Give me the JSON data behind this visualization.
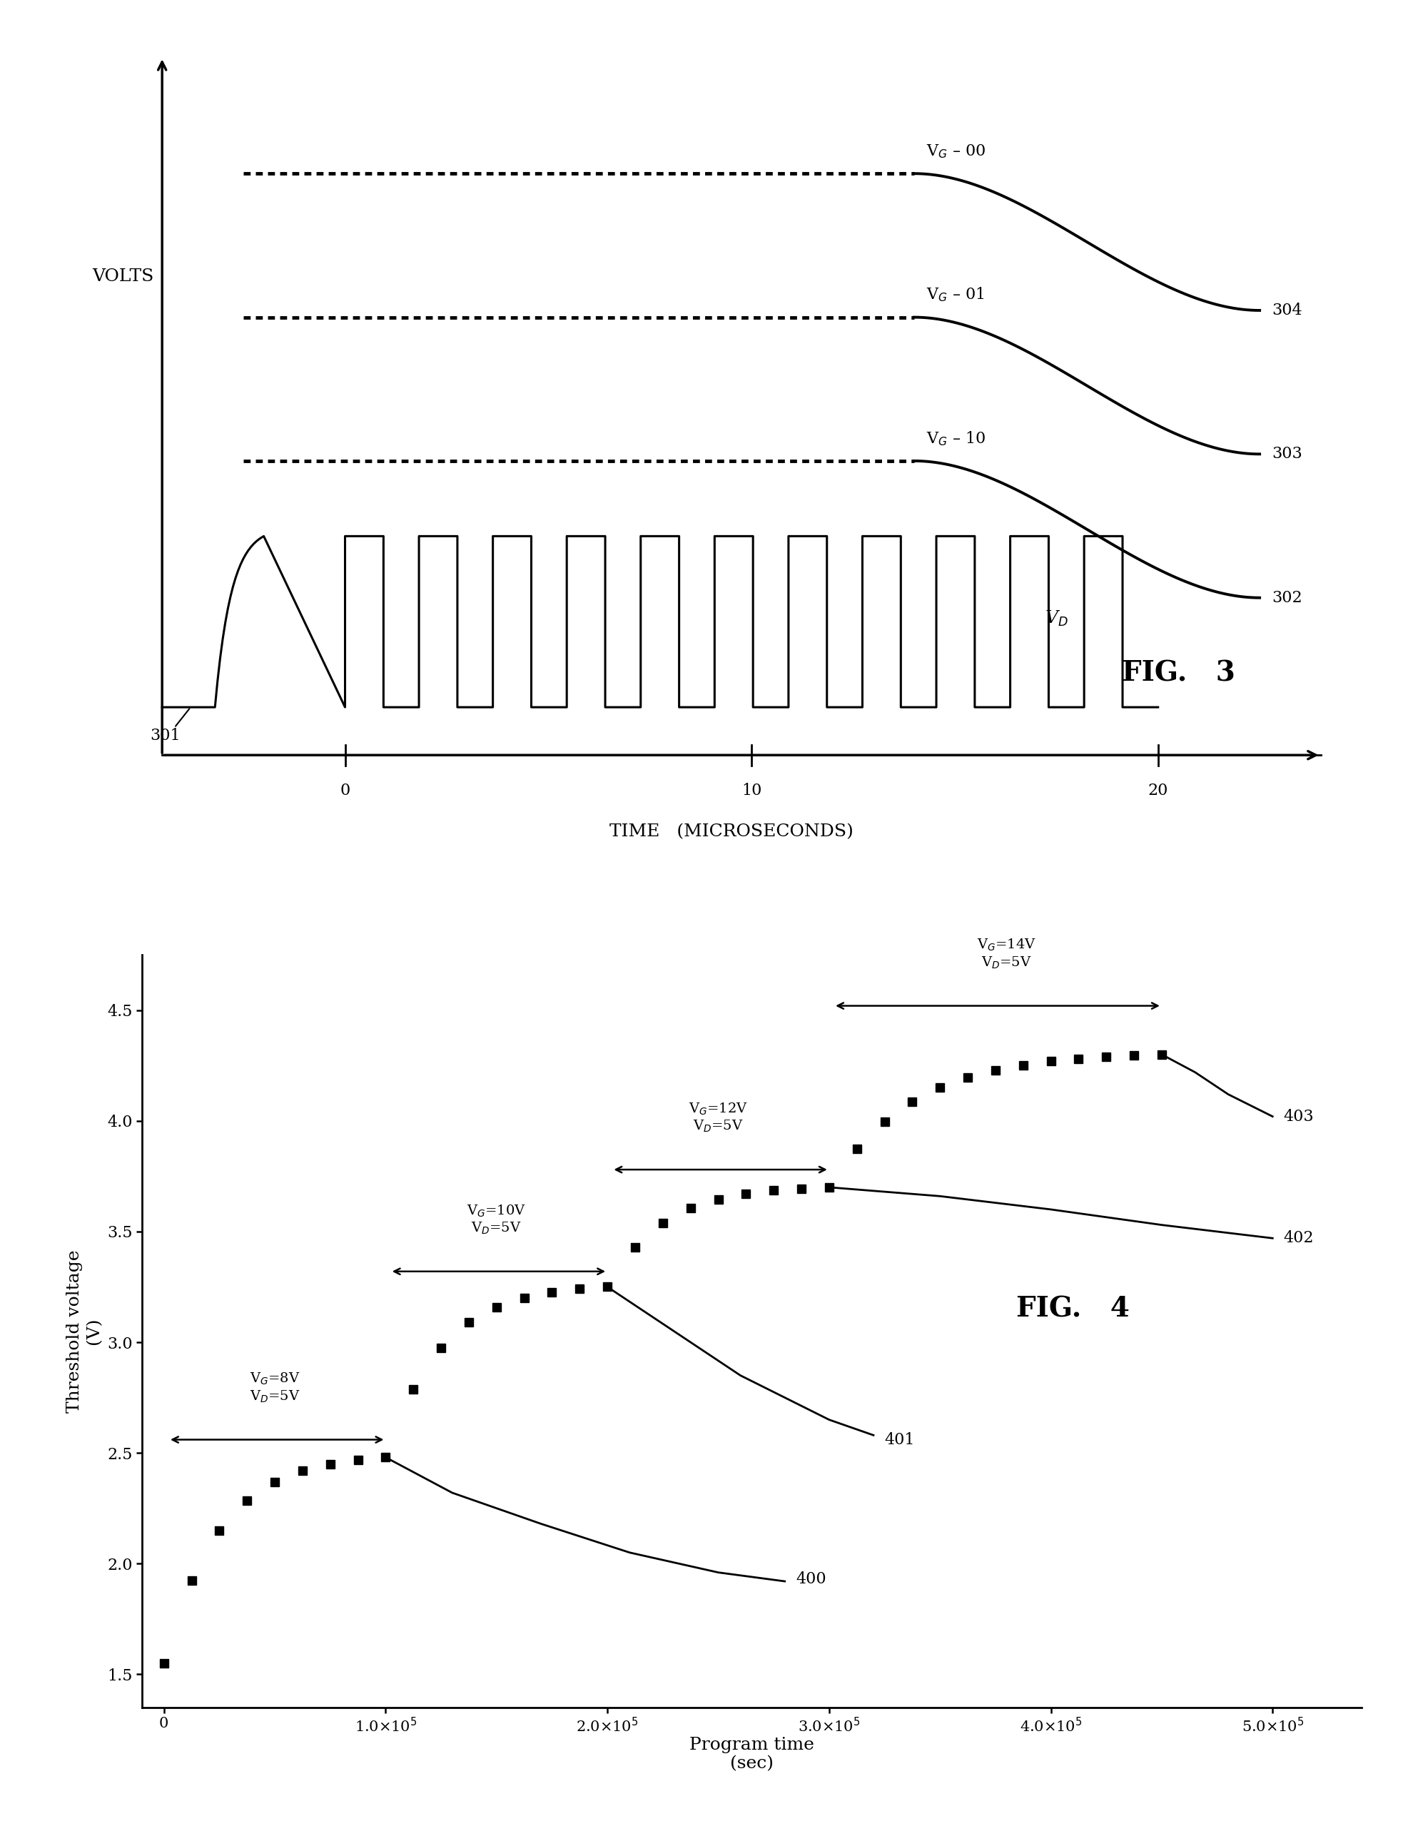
{
  "fig3": {
    "ylabel": "VOLTS",
    "xlabel": "TIME   (MICROSECONDS)",
    "vg_levels": [
      0.85,
      0.64,
      0.43
    ],
    "vg_labels": [
      "V$_G$ – 00",
      "V$_G$ – 01",
      "V$_G$ – 10"
    ],
    "vg_ref_nums": [
      "304",
      "303",
      "302"
    ],
    "vd_label": "V$_D$",
    "fig_label": "FIG.   3",
    "pulse_low": 0.07,
    "pulse_high": 0.32,
    "n_pulses": 11,
    "x_ticks": [
      0,
      10,
      20
    ],
    "ref301": "301",
    "xlim": [
      -5,
      25
    ],
    "ylim": [
      -0.05,
      1.05
    ]
  },
  "fig4": {
    "ylabel": "Threshold voltage\n(V)",
    "xlabel": "Program time\n(sec)",
    "fig_label": "FIG.   4",
    "ylim": [
      1.35,
      4.75
    ],
    "xlim": [
      -10000.0,
      540000.0
    ],
    "y_ticks": [
      1.5,
      2.0,
      2.5,
      3.0,
      3.5,
      4.0,
      4.5
    ],
    "x_ticks": [
      0,
      100000.0,
      200000.0,
      300000.0,
      400000.0,
      500000.0
    ]
  }
}
